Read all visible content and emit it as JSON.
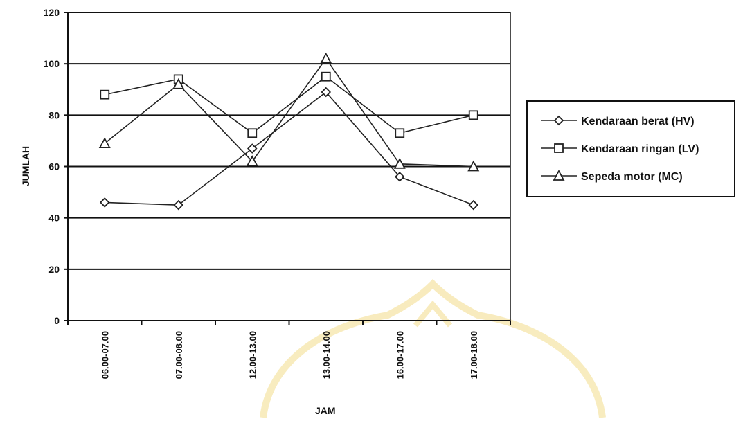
{
  "chart_data": {
    "type": "line",
    "title": "",
    "xlabel": "JAM",
    "ylabel": "JUMLAH",
    "ylim": [
      0,
      120
    ],
    "yticks": [
      0,
      20,
      40,
      60,
      80,
      100,
      120
    ],
    "grid": true,
    "legend_position": "right",
    "categories": [
      "06.00-07.00",
      "07.00-08.00",
      "12.00-13.00",
      "13.00-14.00",
      "16.00-17.00",
      "17.00-18.00"
    ],
    "series": [
      {
        "name": "Kendaraan berat (HV)",
        "marker": "diamond",
        "values": [
          46,
          45,
          67,
          89,
          56,
          45
        ]
      },
      {
        "name": "Kendaraan ringan (LV)",
        "marker": "square",
        "values": [
          88,
          94,
          73,
          95,
          73,
          80
        ]
      },
      {
        "name": "Sepeda motor (MC)",
        "marker": "triangle",
        "values": [
          69,
          92,
          62,
          102,
          61,
          60
        ]
      }
    ],
    "colors": {
      "line": "#222222",
      "grid": "#111111",
      "watermark": "#f3dc8a"
    }
  }
}
